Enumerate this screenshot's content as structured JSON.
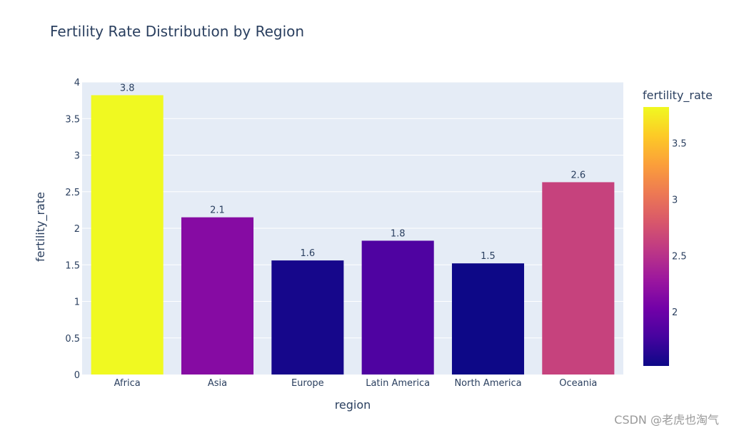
{
  "chart_data": {
    "type": "bar",
    "title": "Fertility Rate Distribution by Region",
    "xlabel": "region",
    "ylabel": "fertility_rate",
    "categories": [
      "Africa",
      "Asia",
      "Europe",
      "Latin America",
      "North America",
      "Oceania"
    ],
    "values": [
      3.82,
      2.15,
      1.56,
      1.83,
      1.52,
      2.63
    ],
    "value_labels": [
      "3.8",
      "2.1",
      "1.6",
      "1.8",
      "1.5",
      "2.6"
    ],
    "ylim": [
      0,
      4
    ],
    "yticks": [
      "0",
      "0.5",
      "1",
      "1.5",
      "2",
      "2.5",
      "3",
      "3.5",
      "4"
    ],
    "grid": true,
    "plot_background": "#e5ecf6",
    "colorbar": {
      "title": "fertility_rate",
      "range": [
        1.52,
        3.82
      ],
      "ticks": [
        "2",
        "2.5",
        "3",
        "3.5"
      ],
      "colorscale": [
        "#0d0887",
        "#46039f",
        "#7201a8",
        "#9c179e",
        "#bd3786",
        "#d8576b",
        "#ed7953",
        "#fb9f3a",
        "#fdca26",
        "#f0f921"
      ]
    }
  },
  "watermark": "CSDN @老虎也淘气"
}
